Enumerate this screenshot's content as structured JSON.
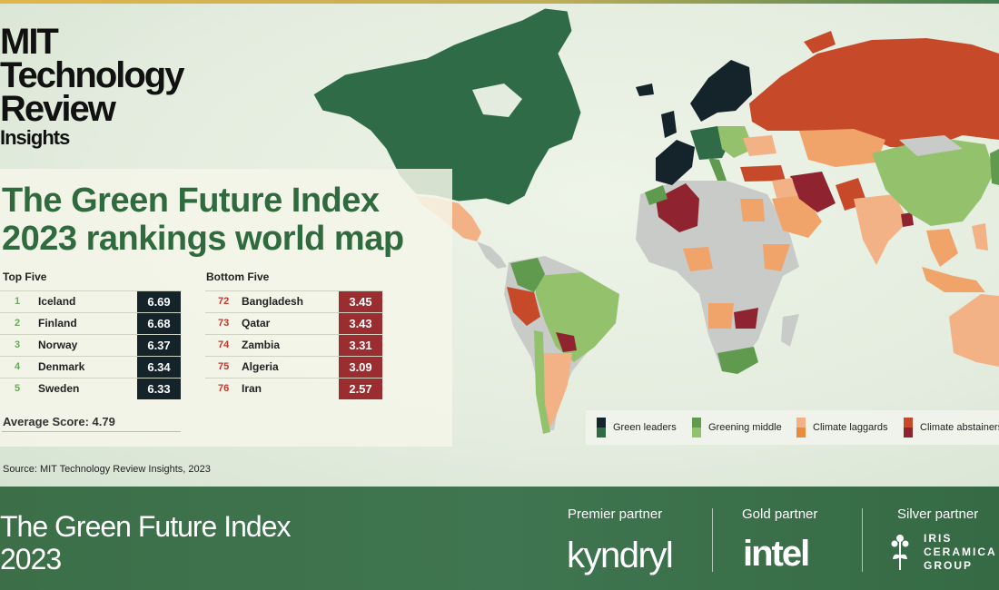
{
  "brand": {
    "line1": "MIT",
    "line2": "Technology",
    "line3": "Review",
    "line4": "Insights"
  },
  "title": {
    "line1": "The Green Future Index",
    "line2": "2023 rankings world map"
  },
  "top_five": {
    "header": "Top Five",
    "rows": [
      {
        "rank": "1",
        "country": "Iceland",
        "score": "6.69"
      },
      {
        "rank": "2",
        "country": "Finland",
        "score": "6.68"
      },
      {
        "rank": "3",
        "country": "Norway",
        "score": "6.37"
      },
      {
        "rank": "4",
        "country": "Denmark",
        "score": "6.34"
      },
      {
        "rank": "5",
        "country": "Sweden",
        "score": "6.33"
      }
    ]
  },
  "bottom_five": {
    "header": "Bottom Five",
    "rows": [
      {
        "rank": "72",
        "country": "Bangladesh",
        "score": "3.45"
      },
      {
        "rank": "73",
        "country": "Qatar",
        "score": "3.43"
      },
      {
        "rank": "74",
        "country": "Zambia",
        "score": "3.31"
      },
      {
        "rank": "75",
        "country": "Algeria",
        "score": "3.09"
      },
      {
        "rank": "76",
        "country": "Iran",
        "score": "2.57"
      }
    ]
  },
  "average": "Average Score: 4.79",
  "source": "Source: MIT Technology Review Insights, 2023",
  "legend": [
    {
      "label": "Green leaders",
      "colors": [
        "#15242a",
        "#2e6b46"
      ]
    },
    {
      "label": "Greening middle",
      "colors": [
        "#5f9a4f",
        "#94c26c"
      ]
    },
    {
      "label": "Climate laggards",
      "colors": [
        "#f3b285",
        "#e98b3a"
      ]
    },
    {
      "label": "Climate abstainers",
      "colors": [
        "#c64a2a",
        "#8f2430"
      ]
    }
  ],
  "colors": {
    "leader_dark": "#15242a",
    "leader": "#2e6b46",
    "middle": "#94c26c",
    "laggard": "#f0a46a",
    "abstainer": "#c64a2a",
    "abstainer_dark": "#8f2430",
    "nodata": "#c9cbc8"
  },
  "footer": {
    "title1": "The Green Future Index",
    "title2": "2023",
    "premier_label": "Premier partner",
    "premier_name": "kyndryl",
    "gold_label": "Gold partner",
    "gold_name": "intel",
    "silver_label": "Silver partner",
    "silver_name_1": "IRIS",
    "silver_name_2": "CERAMICA",
    "silver_name_3": "GROUP"
  }
}
